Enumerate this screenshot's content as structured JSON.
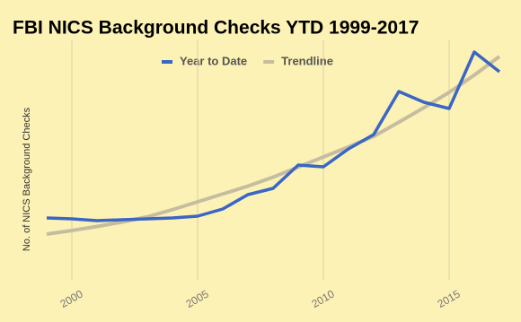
{
  "chart_data": {
    "type": "line",
    "title": "FBI NICS Background Checks YTD 1999-2017",
    "y_label": "No. of NICS Background Checks",
    "x": [
      1999,
      2000,
      2001,
      2002,
      2003,
      2004,
      2005,
      2006,
      2007,
      2008,
      2009,
      2010,
      2011,
      2012,
      2013,
      2014,
      2015,
      2016,
      2017
    ],
    "series": [
      {
        "name": "Year to Date",
        "color": "#3a66c4",
        "values": [
          18.8,
          18.4,
          17.6,
          18,
          18.4,
          18.8,
          19.6,
          22.8,
          29.2,
          32,
          42.4,
          41.6,
          49.6,
          56,
          75.2,
          70.4,
          67.6,
          92.8,
          84
        ]
      },
      {
        "name": "Trendline",
        "color": "#c5bda0",
        "values": [
          11.6,
          13.2,
          15,
          17,
          19.3,
          22.5,
          26,
          29.5,
          33,
          37,
          41.5,
          46,
          50.5,
          55.2,
          61.5,
          68,
          74.8,
          82.5,
          90.8
        ]
      }
    ],
    "xlim": [
      1999,
      2017
    ],
    "xticks": [
      2000,
      2005,
      2010,
      2015
    ],
    "ylim": [
      0,
      100
    ],
    "grid": true,
    "legend": "top"
  }
}
